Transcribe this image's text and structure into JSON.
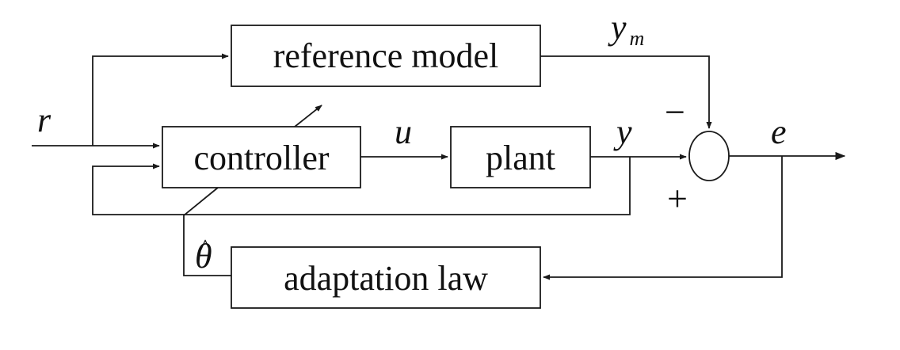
{
  "blocks": {
    "reference_model": "reference model",
    "controller": "controller",
    "plant": "plant",
    "adaptation_law": "adaptation law"
  },
  "signals": {
    "reference_input": "r",
    "control_signal": "u",
    "plant_output": "y",
    "model_output_base": "y",
    "model_output_sub": "m",
    "tracking_error": "e",
    "parameter_estimate_base": "θ",
    "parameter_estimate_hat": "^"
  },
  "summing_junction": {
    "minus_sign": "−",
    "plus_sign": "+"
  }
}
